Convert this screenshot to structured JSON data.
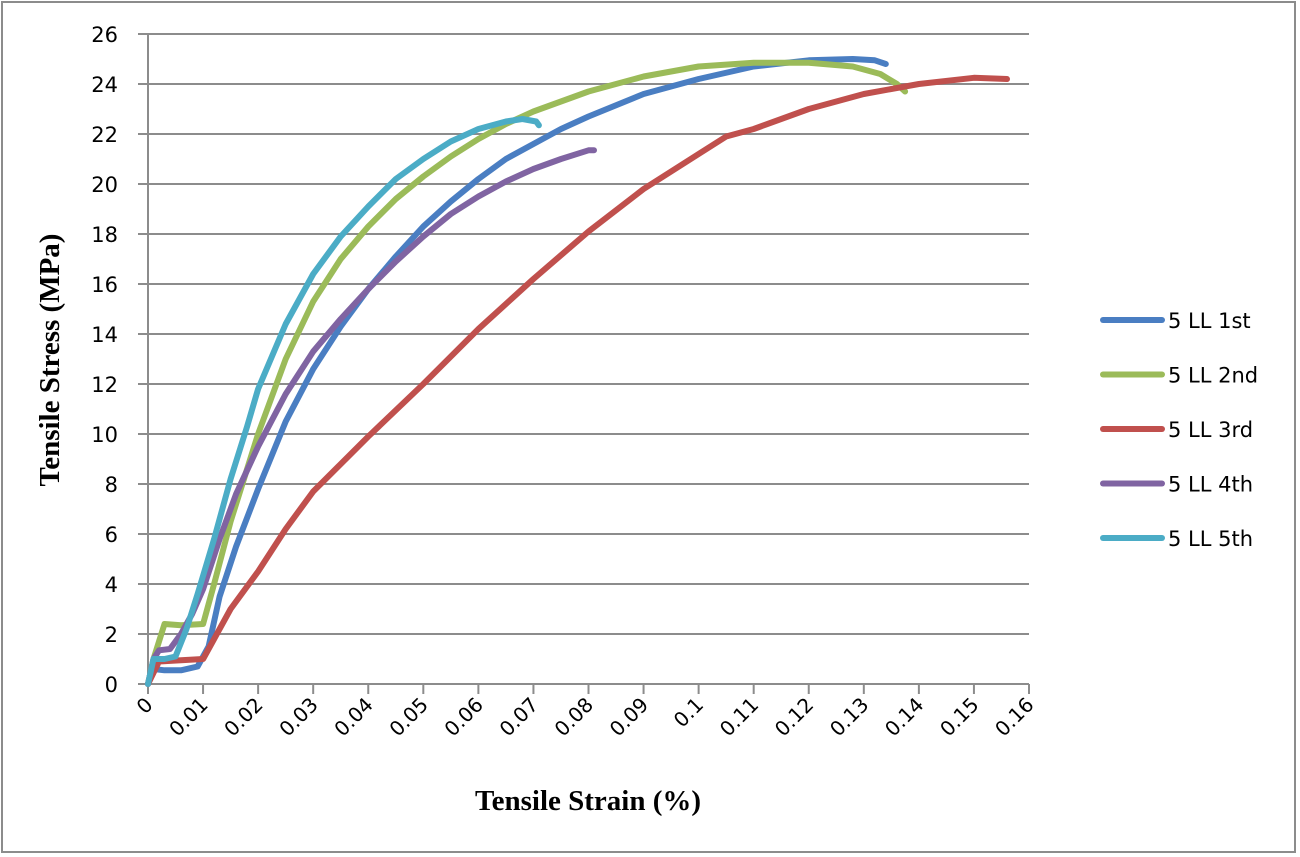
{
  "chart_data": {
    "type": "line",
    "title": "",
    "xlabel": "Tensile Strain (%)",
    "ylabel": "Tensile Stress (MPa)",
    "xlim": [
      0,
      0.16
    ],
    "ylim": [
      0,
      26
    ],
    "x_ticks": [
      "0",
      "0.01",
      "0.02",
      "0.03",
      "0.04",
      "0.05",
      "0.06",
      "0.07",
      "0.08",
      "0.09",
      "0.1",
      "0.11",
      "0.12",
      "0.13",
      "0.14",
      "0.15",
      "0.16"
    ],
    "y_ticks": [
      "0",
      "2",
      "4",
      "6",
      "8",
      "10",
      "12",
      "14",
      "16",
      "18",
      "20",
      "22",
      "24",
      "26"
    ],
    "grid": "horizontal major gridlines",
    "legend_position": "right",
    "series": [
      {
        "name": "5 LL 1st",
        "color": "#4A7EC2",
        "points": [
          [
            0,
            0
          ],
          [
            0.001,
            0.6
          ],
          [
            0.003,
            0.55
          ],
          [
            0.006,
            0.55
          ],
          [
            0.009,
            0.7
          ],
          [
            0.011,
            1.5
          ],
          [
            0.013,
            3.5
          ],
          [
            0.016,
            5.5
          ],
          [
            0.02,
            7.8
          ],
          [
            0.025,
            10.5
          ],
          [
            0.03,
            12.6
          ],
          [
            0.035,
            14.3
          ],
          [
            0.04,
            15.8
          ],
          [
            0.045,
            17.1
          ],
          [
            0.05,
            18.3
          ],
          [
            0.055,
            19.3
          ],
          [
            0.06,
            20.2
          ],
          [
            0.065,
            21.0
          ],
          [
            0.07,
            21.6
          ],
          [
            0.075,
            22.2
          ],
          [
            0.08,
            22.7
          ],
          [
            0.09,
            23.6
          ],
          [
            0.1,
            24.2
          ],
          [
            0.11,
            24.7
          ],
          [
            0.12,
            24.95
          ],
          [
            0.128,
            25.0
          ],
          [
            0.132,
            24.95
          ],
          [
            0.134,
            24.8
          ]
        ]
      },
      {
        "name": "5 LL 2nd",
        "color": "#9BBB59",
        "points": [
          [
            0,
            0
          ],
          [
            0.001,
            1.0
          ],
          [
            0.003,
            2.4
          ],
          [
            0.006,
            2.35
          ],
          [
            0.01,
            2.4
          ],
          [
            0.012,
            4.0
          ],
          [
            0.015,
            6.5
          ],
          [
            0.02,
            10.0
          ],
          [
            0.025,
            13.0
          ],
          [
            0.03,
            15.3
          ],
          [
            0.035,
            17.0
          ],
          [
            0.04,
            18.3
          ],
          [
            0.045,
            19.4
          ],
          [
            0.05,
            20.3
          ],
          [
            0.055,
            21.1
          ],
          [
            0.06,
            21.8
          ],
          [
            0.065,
            22.4
          ],
          [
            0.07,
            22.9
          ],
          [
            0.08,
            23.7
          ],
          [
            0.09,
            24.3
          ],
          [
            0.1,
            24.7
          ],
          [
            0.11,
            24.85
          ],
          [
            0.12,
            24.85
          ],
          [
            0.128,
            24.7
          ],
          [
            0.133,
            24.4
          ],
          [
            0.136,
            24.0
          ],
          [
            0.1375,
            23.7
          ]
        ]
      },
      {
        "name": "5 LL 3rd",
        "color": "#C0504D",
        "points": [
          [
            0,
            0
          ],
          [
            0.002,
            0.9
          ],
          [
            0.006,
            0.95
          ],
          [
            0.01,
            1.0
          ],
          [
            0.012,
            1.8
          ],
          [
            0.015,
            3.0
          ],
          [
            0.02,
            4.5
          ],
          [
            0.025,
            6.2
          ],
          [
            0.03,
            7.7
          ],
          [
            0.04,
            9.9
          ],
          [
            0.05,
            12.0
          ],
          [
            0.06,
            14.2
          ],
          [
            0.07,
            16.2
          ],
          [
            0.08,
            18.1
          ],
          [
            0.09,
            19.8
          ],
          [
            0.1,
            21.2
          ],
          [
            0.105,
            21.9
          ],
          [
            0.11,
            22.2
          ],
          [
            0.12,
            23.0
          ],
          [
            0.13,
            23.6
          ],
          [
            0.14,
            24.0
          ],
          [
            0.15,
            24.25
          ],
          [
            0.156,
            24.2
          ]
        ]
      },
      {
        "name": "5 LL 4th",
        "color": "#8064A2",
        "points": [
          [
            0,
            0
          ],
          [
            0.001,
            1.0
          ],
          [
            0.002,
            1.35
          ],
          [
            0.004,
            1.4
          ],
          [
            0.006,
            2.0
          ],
          [
            0.008,
            2.8
          ],
          [
            0.01,
            3.8
          ],
          [
            0.013,
            5.8
          ],
          [
            0.016,
            7.6
          ],
          [
            0.02,
            9.5
          ],
          [
            0.025,
            11.6
          ],
          [
            0.03,
            13.3
          ],
          [
            0.035,
            14.6
          ],
          [
            0.04,
            15.8
          ],
          [
            0.045,
            16.9
          ],
          [
            0.05,
            17.9
          ],
          [
            0.055,
            18.8
          ],
          [
            0.06,
            19.5
          ],
          [
            0.065,
            20.1
          ],
          [
            0.07,
            20.6
          ],
          [
            0.075,
            21.0
          ],
          [
            0.08,
            21.35
          ],
          [
            0.081,
            21.35
          ]
        ]
      },
      {
        "name": "5 LL 5th",
        "color": "#4BACC6",
        "points": [
          [
            0,
            0
          ],
          [
            0.001,
            1.0
          ],
          [
            0.003,
            1.0
          ],
          [
            0.005,
            1.1
          ],
          [
            0.007,
            2.2
          ],
          [
            0.009,
            3.6
          ],
          [
            0.012,
            5.8
          ],
          [
            0.015,
            8.2
          ],
          [
            0.018,
            10.3
          ],
          [
            0.02,
            11.8
          ],
          [
            0.025,
            14.4
          ],
          [
            0.03,
            16.4
          ],
          [
            0.035,
            17.9
          ],
          [
            0.04,
            19.1
          ],
          [
            0.045,
            20.2
          ],
          [
            0.05,
            21.0
          ],
          [
            0.055,
            21.7
          ],
          [
            0.06,
            22.2
          ],
          [
            0.065,
            22.5
          ],
          [
            0.068,
            22.6
          ],
          [
            0.0705,
            22.5
          ],
          [
            0.071,
            22.35
          ]
        ]
      }
    ]
  },
  "legend": {
    "items": [
      {
        "label": "5 LL 1st",
        "color": "#4A7EC2"
      },
      {
        "label": "5 LL 2nd",
        "color": "#9BBB59"
      },
      {
        "label": "5 LL 3rd",
        "color": "#C0504D"
      },
      {
        "label": "5 LL 4th",
        "color": "#8064A2"
      },
      {
        "label": "5 LL 5th",
        "color": "#4BACC6"
      }
    ]
  },
  "axes": {
    "x_title": "Tensile Strain (%)",
    "y_title": "Tensile Stress (MPa)"
  }
}
